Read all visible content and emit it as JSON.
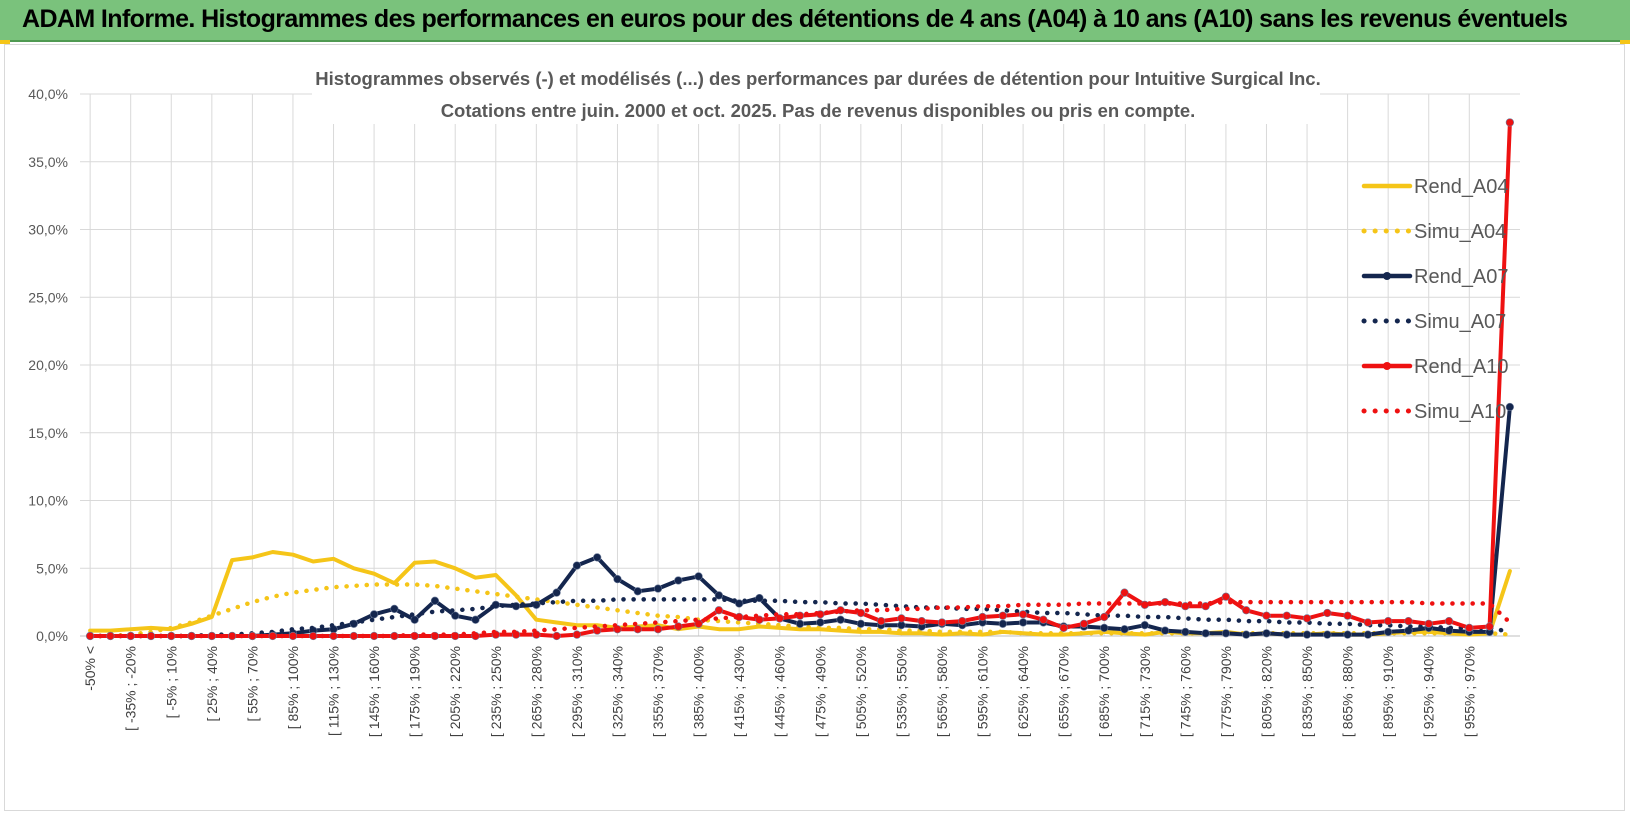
{
  "banner": {
    "title": "ADAM Informe. Histogrammes des performances en euros pour des détentions de 4 ans (A04) à 10 ans (A10) sans les revenus éventuels",
    "color": "#7ac27c"
  },
  "chart_data": {
    "type": "line",
    "title": "Histogrammes observés (-) et modélisés (...) des performances par durées de détention pour Intuitive Surgical Inc.",
    "subtitle": "Cotations entre juin. 2000 et oct. 2025. Pas de revenus disponibles ou pris en compte.",
    "xlabel": "",
    "ylabel": "",
    "ylim": [
      0,
      40
    ],
    "yticks": [
      "0,0%",
      "5,0%",
      "10,0%",
      "15,0%",
      "20,0%",
      "25,0%",
      "30,0%",
      "35,0%",
      "40,0%"
    ],
    "grid": true,
    "legend_position": "right",
    "x_labels": [
      "-50% <",
      "[ -35% ; -20%",
      "[ -5% ; 10%",
      "[ 25% ; 40%",
      "[ 55% ; 70%",
      "[ 85% ; 100%",
      "[ 115% ; 130%",
      "[ 145% ; 160%",
      "[ 175% ; 190%",
      "[ 205% ; 220%",
      "[ 235% ; 250%",
      "[ 265% ; 280%",
      "[ 295% ; 310%",
      "[ 325% ; 340%",
      "[ 355% ; 370%",
      "[ 385% ; 400%",
      "[ 415% ; 430%",
      "[ 445% ; 460%",
      "[ 475% ; 490%",
      "[ 505% ; 520%",
      "[ 535% ; 550%",
      "[ 565% ; 580%",
      "[ 595% ; 610%",
      "[ 625% ; 640%",
      "[ 655% ; 670%",
      "[ 685% ; 700%",
      "[ 715% ; 730%",
      "[ 745% ; 760%",
      "[ 775% ; 790%",
      "[ 805% ; 820%",
      "[ 835% ; 850%",
      "[ 865% ; 880%",
      "[ 895% ; 910%",
      "[ 925% ; 940%",
      "[ 955% ; 970%"
    ],
    "series": [
      {
        "name": "Rend_A04",
        "style": "solid",
        "color": "#f5c518",
        "markers": false,
        "values": [
          0.4,
          0.4,
          0.5,
          0.6,
          0.5,
          0.9,
          1.4,
          5.6,
          5.8,
          6.2,
          6.0,
          5.5,
          5.7,
          5.0,
          4.6,
          3.9,
          5.4,
          5.5,
          5.0,
          4.3,
          4.5,
          3.0,
          1.2,
          1.0,
          0.8,
          0.8,
          0.6,
          0.7,
          0.8,
          0.5,
          0.7,
          0.5,
          0.5,
          0.7,
          0.6,
          0.5,
          0.5,
          0.4,
          0.3,
          0.3,
          0.2,
          0.2,
          0.1,
          0.2,
          0.1,
          0.3,
          0.2,
          0.1,
          0.1,
          0.2,
          0.3,
          0.2,
          0.1,
          0.3,
          0.2,
          0.2,
          0.3,
          0.1,
          0.2,
          0.1,
          0.1,
          0.2,
          0.1,
          0.1,
          0.2,
          0.3,
          0.3,
          0.2,
          0.1,
          0.2,
          4.8
        ]
      },
      {
        "name": "Simu_A04",
        "style": "dotted",
        "color": "#f5c518",
        "markers": false,
        "values": [
          0.0,
          0.0,
          0.1,
          0.3,
          0.6,
          1.0,
          1.5,
          2.0,
          2.5,
          2.9,
          3.2,
          3.4,
          3.6,
          3.7,
          3.8,
          3.8,
          3.8,
          3.7,
          3.5,
          3.3,
          3.1,
          2.9,
          2.7,
          2.5,
          2.3,
          2.1,
          1.9,
          1.7,
          1.5,
          1.4,
          1.2,
          1.1,
          1.0,
          0.9,
          0.8,
          0.7,
          0.6,
          0.6,
          0.5,
          0.5,
          0.4,
          0.4,
          0.3,
          0.3,
          0.3,
          0.3,
          0.2,
          0.2,
          0.2,
          0.2,
          0.2,
          0.2,
          0.2,
          0.2,
          0.2,
          0.2,
          0.2,
          0.2,
          0.2,
          0.2,
          0.2,
          0.2,
          0.2,
          0.2,
          0.2,
          0.2,
          0.2,
          0.2,
          0.2,
          0.2,
          0.1
        ]
      },
      {
        "name": "Rend_A07",
        "style": "solid",
        "color": "#14264e",
        "markers": true,
        "values": [
          0.0,
          0.0,
          0.0,
          0.0,
          0.0,
          0.0,
          0.0,
          0.0,
          0.0,
          0.1,
          0.2,
          0.4,
          0.5,
          0.9,
          1.6,
          2.0,
          1.2,
          2.6,
          1.5,
          1.2,
          2.3,
          2.2,
          2.3,
          3.2,
          5.2,
          5.8,
          4.2,
          3.3,
          3.5,
          4.1,
          4.4,
          3.0,
          2.4,
          2.8,
          1.3,
          0.9,
          1.0,
          1.2,
          0.9,
          0.8,
          0.8,
          0.7,
          0.9,
          0.8,
          1.0,
          0.9,
          1.0,
          1.0,
          0.7,
          0.7,
          0.6,
          0.5,
          0.8,
          0.4,
          0.3,
          0.2,
          0.2,
          0.1,
          0.2,
          0.1,
          0.1,
          0.1,
          0.1,
          0.1,
          0.3,
          0.4,
          0.6,
          0.4,
          0.3,
          0.3,
          16.9
        ]
      },
      {
        "name": "Simu_A07",
        "style": "dotted",
        "color": "#14264e",
        "markers": false,
        "values": [
          0.0,
          0.0,
          0.0,
          0.0,
          0.0,
          0.0,
          0.1,
          0.1,
          0.2,
          0.3,
          0.5,
          0.6,
          0.8,
          1.0,
          1.2,
          1.4,
          1.6,
          1.8,
          1.9,
          2.0,
          2.2,
          2.3,
          2.4,
          2.5,
          2.6,
          2.6,
          2.7,
          2.7,
          2.7,
          2.7,
          2.7,
          2.7,
          2.6,
          2.6,
          2.6,
          2.5,
          2.5,
          2.4,
          2.4,
          2.3,
          2.2,
          2.1,
          2.1,
          2.0,
          2.0,
          1.9,
          1.8,
          1.7,
          1.7,
          1.6,
          1.5,
          1.5,
          1.4,
          1.4,
          1.3,
          1.2,
          1.2,
          1.1,
          1.1,
          1.0,
          1.0,
          0.9,
          0.9,
          0.8,
          0.8,
          0.7,
          0.7,
          0.6,
          0.6,
          0.6,
          0.3
        ]
      },
      {
        "name": "Rend_A10",
        "style": "solid",
        "color": "#ee1111",
        "markers": true,
        "values": [
          0.0,
          0.0,
          0.0,
          0.0,
          0.0,
          0.0,
          0.0,
          0.0,
          0.0,
          0.0,
          0.0,
          0.0,
          0.0,
          0.0,
          0.0,
          0.0,
          0.0,
          0.0,
          0.0,
          0.0,
          0.1,
          0.1,
          0.1,
          0.0,
          0.1,
          0.4,
          0.5,
          0.5,
          0.5,
          0.7,
          0.9,
          1.9,
          1.4,
          1.2,
          1.3,
          1.5,
          1.6,
          1.9,
          1.7,
          1.1,
          1.3,
          1.1,
          1.0,
          1.1,
          1.4,
          1.5,
          1.6,
          1.2,
          0.6,
          0.9,
          1.4,
          3.2,
          2.3,
          2.5,
          2.2,
          2.2,
          2.9,
          1.9,
          1.5,
          1.5,
          1.3,
          1.7,
          1.5,
          1.0,
          1.1,
          1.1,
          0.9,
          1.1,
          0.6,
          0.7,
          37.9
        ]
      },
      {
        "name": "Simu_A10",
        "style": "dotted",
        "color": "#ee1111",
        "markers": false,
        "values": [
          0.0,
          0.0,
          0.0,
          0.0,
          0.0,
          0.0,
          0.0,
          0.0,
          0.0,
          0.0,
          0.0,
          0.0,
          0.0,
          0.0,
          0.0,
          0.0,
          0.1,
          0.1,
          0.1,
          0.2,
          0.3,
          0.3,
          0.4,
          0.5,
          0.6,
          0.7,
          0.8,
          0.9,
          1.0,
          1.1,
          1.2,
          1.3,
          1.4,
          1.5,
          1.6,
          1.6,
          1.7,
          1.8,
          1.9,
          1.9,
          2.0,
          2.0,
          2.1,
          2.1,
          2.2,
          2.2,
          2.3,
          2.3,
          2.3,
          2.4,
          2.4,
          2.4,
          2.4,
          2.4,
          2.4,
          2.4,
          2.5,
          2.5,
          2.5,
          2.5,
          2.5,
          2.5,
          2.5,
          2.5,
          2.5,
          2.5,
          2.4,
          2.4,
          2.4,
          2.4,
          1.0
        ]
      }
    ]
  }
}
